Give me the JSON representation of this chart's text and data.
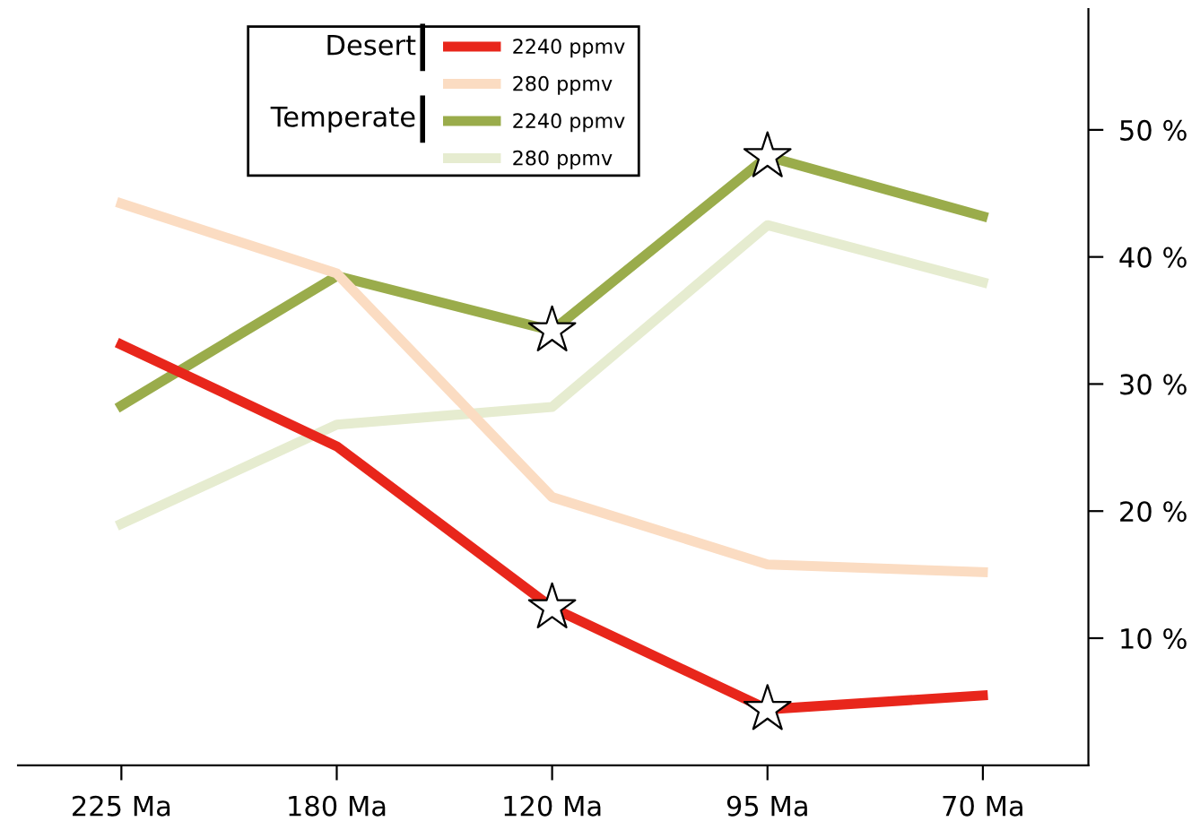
{
  "chart_data": {
    "type": "line",
    "categories": [
      "225 Ma",
      "180 Ma",
      "120 Ma",
      "95 Ma",
      "70 Ma"
    ],
    "series": [
      {
        "name": "2240 ppmv",
        "color": "#e8261b",
        "values": [
          33.1,
          25.1,
          12.4,
          4.4,
          5.5
        ]
      },
      {
        "name": "280 ppmv",
        "color": "#fbdcc2",
        "values": [
          44.2,
          38.7,
          21.1,
          15.8,
          15.2
        ]
      },
      {
        "name": "2240 ppmv",
        "color": "#9aac4b",
        "values": [
          28.3,
          38.5,
          34.2,
          47.9,
          43.2
        ]
      },
      {
        "name": "280 ppmv",
        "color": "#e6ecd0",
        "values": [
          19.0,
          26.8,
          28.2,
          42.5,
          38.0
        ]
      },
      {
        "type": "scatter",
        "marker": "star",
        "color": "#ffffff",
        "x": [
          "120 Ma",
          "95 Ma",
          "120 Ma",
          "95 Ma"
        ],
        "values": [
          34.2,
          47.9,
          12.4,
          4.4
        ]
      }
    ],
    "annotations": [
      "Desert",
      "Temperate"
    ],
    "ylim": [
      0,
      59.5
    ],
    "yticks": [
      {
        "value": 10,
        "label": "10 %"
      },
      {
        "value": 20,
        "label": "20 %"
      },
      {
        "value": 30,
        "label": "30 %"
      },
      {
        "value": 40,
        "label": "40 %"
      },
      {
        "value": 50,
        "label": "50 %"
      }
    ],
    "grid": false,
    "legend": "top left",
    "marker": "none",
    "line_style": "solid"
  }
}
